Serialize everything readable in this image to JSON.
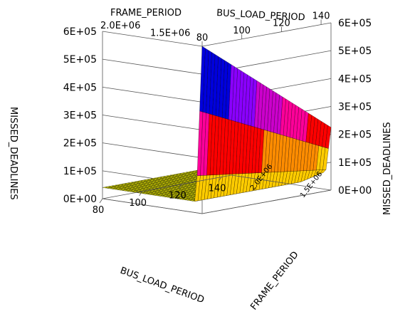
{
  "chart_data": {
    "type": "surface3d",
    "title": "",
    "z_axis_label_left": "MISSED_DEADLINES",
    "z_axis_label_right": "MISSED_DEADLINES",
    "top_x_label": "FRAME_PERIOD",
    "top_y_label": "BUS_LOAD_PERIOD",
    "front_x_label": "BUS_LOAD_PERIOD",
    "front_y_label": "FRAME_PERIOD",
    "z_ticks": [
      "0E+00",
      "1E+05",
      "2E+05",
      "3E+05",
      "4E+05",
      "5E+05",
      "6E+05"
    ],
    "bus_ticks": [
      "80",
      "100",
      "120",
      "140"
    ],
    "frame_ticks": [
      "1.5E+06",
      "2.0E+06"
    ],
    "bus_range": [
      80,
      145
    ],
    "frame_range": [
      1000000,
      2100000
    ],
    "zlim": [
      0,
      600000
    ],
    "grid": true,
    "surface_corner_values": {
      "bus80_frameMin": 600000,
      "bus145_frameMin": 225000,
      "bus80_frameMax": 40000,
      "bus145_frameMax": 40000,
      "bus145_frame1_5e6": 60000
    },
    "colormap": [
      "#ffff00",
      "#ffcc00",
      "#ff8c00",
      "#ff0000",
      "#ff0099",
      "#cc00cc",
      "#8a00ff",
      "#0000dd",
      "#0055ee",
      "#00c8ff"
    ]
  }
}
